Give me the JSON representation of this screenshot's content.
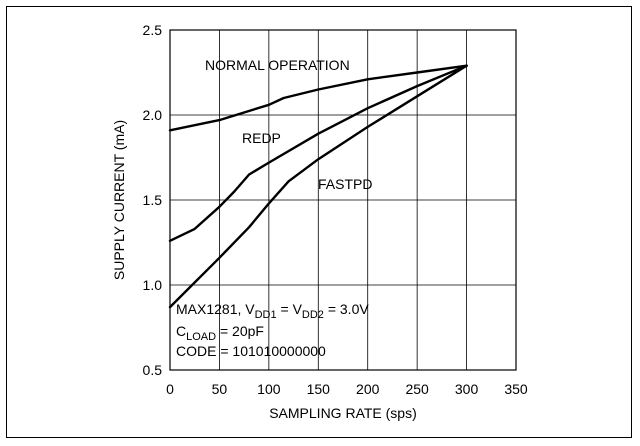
{
  "chart_data": {
    "type": "line",
    "title": "",
    "xlabel": "SAMPLING RATE (sps)",
    "ylabel": "SUPPLY CURRENT (mA)",
    "xlim": [
      0,
      350
    ],
    "ylim": [
      0.5,
      2.5
    ],
    "xticks": [
      0,
      50,
      100,
      150,
      200,
      250,
      300,
      350
    ],
    "yticks": [
      "0.5",
      "1.0",
      "1.5",
      "2.0",
      "2.5"
    ],
    "grid": true,
    "series": [
      {
        "name": "NORMAL OPERATION",
        "x": [
          0,
          50,
          100,
          115,
          150,
          200,
          250,
          300
        ],
        "y": [
          1.91,
          1.97,
          2.06,
          2.1,
          2.15,
          2.21,
          2.25,
          2.29
        ]
      },
      {
        "name": "REDP",
        "x": [
          0,
          25,
          50,
          65,
          80,
          100,
          150,
          200,
          250,
          300
        ],
        "y": [
          1.26,
          1.33,
          1.46,
          1.55,
          1.65,
          1.72,
          1.89,
          2.04,
          2.17,
          2.29
        ]
      },
      {
        "name": "FASTPD",
        "x": [
          0,
          50,
          80,
          100,
          120,
          150,
          200,
          250,
          300
        ],
        "y": [
          0.87,
          1.16,
          1.34,
          1.48,
          1.61,
          1.74,
          1.93,
          2.11,
          2.29
        ]
      }
    ],
    "annotations": {
      "line1": {
        "pre": "MAX1281, V",
        "sub1": "DD1",
        "mid": " = V",
        "sub2": "DD2",
        "post": " = 3.0V"
      },
      "line2": {
        "pre": "C",
        "sub": "LOAD",
        "post": " = 20pF"
      },
      "line3": "CODE = 101010000000"
    }
  }
}
